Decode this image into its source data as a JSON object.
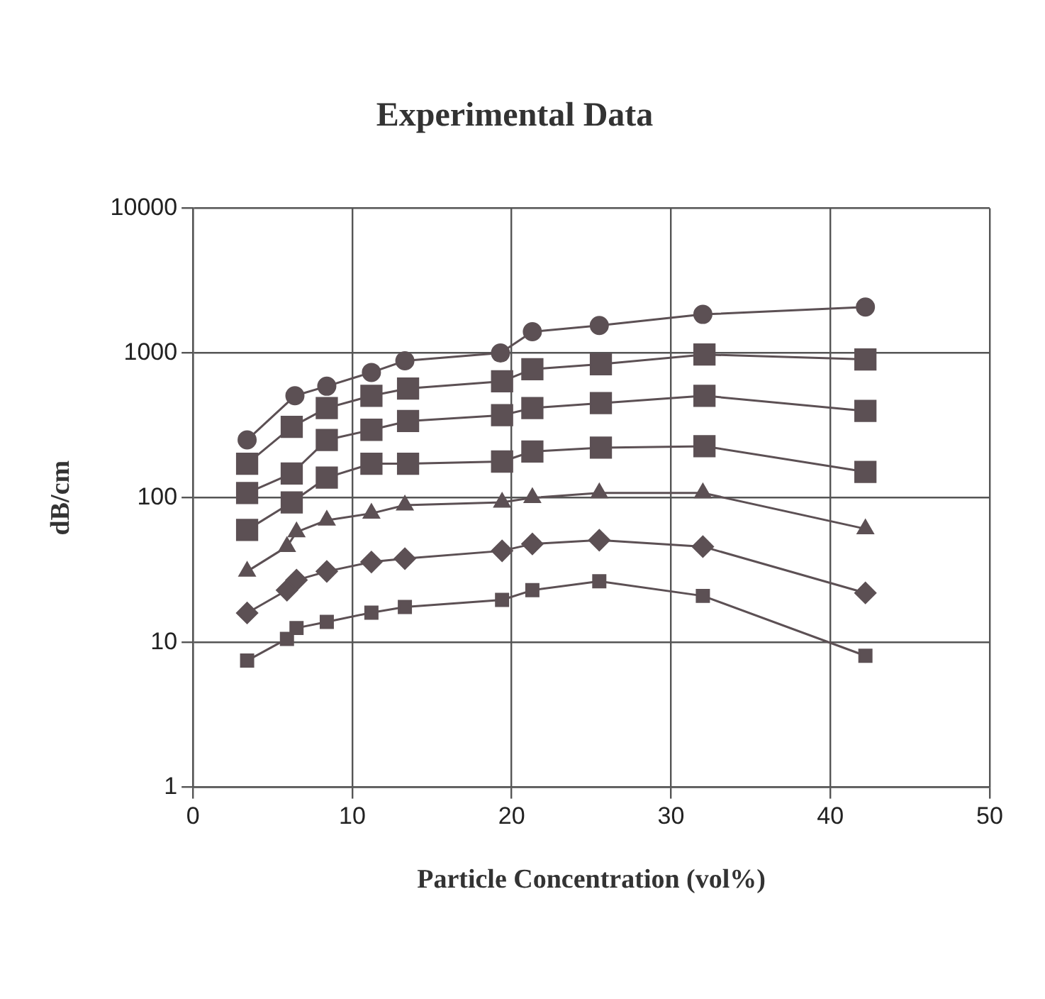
{
  "chart_data": {
    "type": "line",
    "title": "Experimental Data",
    "xlabel": "Particle Concentration (vol%)",
    "ylabel": "dB/cm",
    "log": "y",
    "grid": true,
    "legend": false,
    "xlim": [
      0,
      50
    ],
    "xticks": [
      0,
      10,
      20,
      30,
      40,
      50
    ],
    "ylim": [
      1,
      10000
    ],
    "yticks": [
      1,
      10,
      100,
      1000,
      10000
    ],
    "line_style": "solid",
    "series": [
      {
        "color": "#5c5054",
        "marker": "circle",
        "x": [
          3.4,
          6.4,
          8.4,
          11.2,
          13.3,
          19.3,
          21.3,
          25.5,
          32.0,
          42.2
        ],
        "values": [
          251,
          507,
          590,
          735,
          884,
          1000,
          1405,
          1550,
          1850,
          2080
        ]
      },
      {
        "color": "#5c5054",
        "marker": "square",
        "x": [
          3.4,
          6.2,
          8.4,
          11.2,
          13.5,
          19.4,
          21.3,
          25.6,
          32.1,
          42.2
        ],
        "values": [
          172,
          309,
          417,
          507,
          569,
          638,
          774,
          838,
          977,
          904
        ]
      },
      {
        "color": "#5c5054",
        "marker": "square",
        "x": [
          3.4,
          6.2,
          8.4,
          11.2,
          13.5,
          19.4,
          21.3,
          25.6,
          32.1,
          42.2
        ],
        "values": [
          108,
          147,
          251,
          295,
          339,
          372,
          417,
          451,
          507,
          398
        ]
      },
      {
        "color": "#5c5054",
        "marker": "square",
        "x": [
          3.4,
          6.2,
          8.4,
          11.2,
          13.5,
          19.4,
          21.3,
          25.6,
          32.1,
          42.2
        ],
        "values": [
          60,
          93,
          138,
          172,
          172,
          178,
          209,
          222,
          227,
          151
        ]
      },
      {
        "color": "#5c5054",
        "marker": "triangle",
        "x": [
          3.4,
          5.9,
          6.5,
          8.4,
          11.2,
          13.3,
          19.4,
          21.3,
          25.5,
          32.0,
          42.2
        ],
        "values": [
          31,
          46,
          58,
          70,
          78,
          89,
          93,
          100,
          108,
          108,
          61
        ]
      },
      {
        "color": "#5c5054",
        "marker": "diamond",
        "x": [
          3.4,
          5.9,
          6.5,
          8.4,
          11.2,
          13.3,
          19.4,
          21.3,
          25.5,
          32.0,
          42.2
        ],
        "values": [
          16,
          23,
          27,
          31,
          36,
          38,
          43,
          48,
          51,
          46,
          22
        ]
      },
      {
        "color": "#5c5054",
        "marker": "square",
        "x": [
          3.4,
          5.9,
          6.5,
          8.4,
          11.2,
          13.3,
          19.4,
          21.3,
          25.5,
          32.0,
          42.2
        ],
        "values": [
          7.5,
          10.6,
          12.6,
          13.9,
          16.1,
          17.6,
          19.7,
          23,
          26.5,
          21,
          8.1
        ]
      }
    ]
  }
}
